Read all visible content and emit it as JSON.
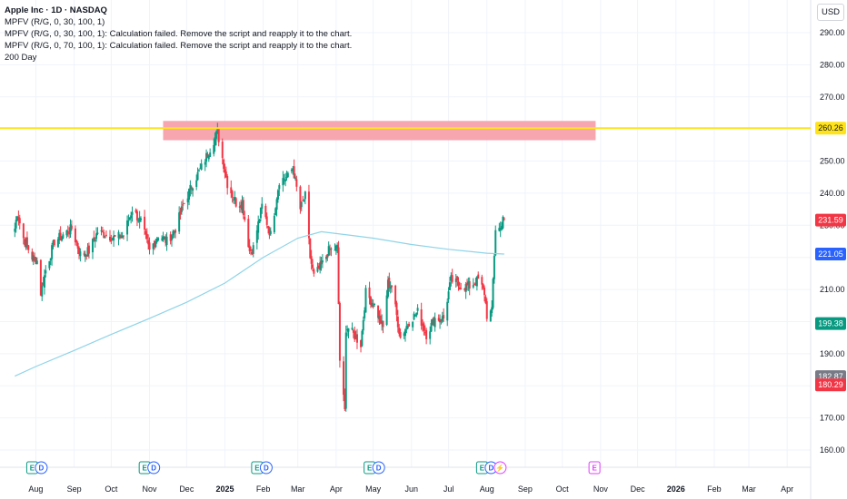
{
  "legend": {
    "title": "Apple Inc · 1D · NASDAQ",
    "lines": [
      "MPFV (R/G, 0, 30, 100, 1)",
      "MPFV (R/G, 0, 30, 100, 1): Calculation failed. Remove the script and reapply it to the chart.",
      "MPFV (R/G, 0, 70, 100, 1): Calculation failed. Remove the script and reapply it to the chart.",
      "200 Day"
    ]
  },
  "currency": "USD",
  "colors": {
    "up": "#089981",
    "down": "#f23645",
    "ma": "#8fd4e8",
    "resistance": "#ffe31a",
    "zone": "#f7a0aa",
    "grid": "#f0f3fa"
  },
  "chart_data": {
    "type": "candlestick",
    "ylim": [
      155,
      296
    ],
    "y_ticks": [
      160,
      170,
      180,
      190,
      200,
      210,
      220,
      230,
      240,
      250,
      260,
      270,
      280,
      290
    ],
    "x_labels": [
      {
        "label": "Aug",
        "date": "2024-08-01"
      },
      {
        "label": "Sep",
        "date": "2024-09-01"
      },
      {
        "label": "Oct",
        "date": "2024-10-01"
      },
      {
        "label": "Nov",
        "date": "2024-11-01"
      },
      {
        "label": "Dec",
        "date": "2024-12-01"
      },
      {
        "label": "2025",
        "date": "2025-01-01",
        "bold": true
      },
      {
        "label": "Feb",
        "date": "2025-02-01"
      },
      {
        "label": "Mar",
        "date": "2025-03-01"
      },
      {
        "label": "Apr",
        "date": "2025-04-01"
      },
      {
        "label": "May",
        "date": "2025-05-01"
      },
      {
        "label": "Jun",
        "date": "2025-06-01"
      },
      {
        "label": "Jul",
        "date": "2025-07-01"
      },
      {
        "label": "Aug",
        "date": "2025-08-01"
      },
      {
        "label": "Sep",
        "date": "2025-09-01"
      },
      {
        "label": "Oct",
        "date": "2025-10-01"
      },
      {
        "label": "Nov",
        "date": "2025-11-01"
      },
      {
        "label": "Dec",
        "date": "2025-12-01"
      },
      {
        "label": "2026",
        "date": "2026-01-01",
        "bold": true
      },
      {
        "label": "Feb",
        "date": "2026-02-01"
      },
      {
        "label": "Mar",
        "date": "2026-03-01"
      },
      {
        "label": "Apr",
        "date": "2026-04-01"
      }
    ],
    "price_anchors": [
      [
        "2024-07-15",
        229
      ],
      [
        "2024-07-17",
        234
      ],
      [
        "2024-07-22",
        226
      ],
      [
        "2024-07-29",
        220
      ],
      [
        "2024-08-02",
        219
      ],
      [
        "2024-08-05",
        209
      ],
      [
        "2024-08-09",
        216
      ],
      [
        "2024-08-16",
        225
      ],
      [
        "2024-08-23",
        227
      ],
      [
        "2024-08-30",
        229
      ],
      [
        "2024-09-06",
        221
      ],
      [
        "2024-09-13",
        222
      ],
      [
        "2024-09-20",
        228
      ],
      [
        "2024-09-27",
        227
      ],
      [
        "2024-10-04",
        226
      ],
      [
        "2024-10-11",
        227
      ],
      [
        "2024-10-18",
        235
      ],
      [
        "2024-10-25",
        231
      ],
      [
        "2024-11-01",
        222
      ],
      [
        "2024-11-08",
        227
      ],
      [
        "2024-11-15",
        225
      ],
      [
        "2024-11-22",
        229
      ],
      [
        "2024-11-29",
        237
      ],
      [
        "2024-12-06",
        243
      ],
      [
        "2024-12-13",
        248
      ],
      [
        "2024-12-20",
        254
      ],
      [
        "2024-12-26",
        259
      ],
      [
        "2025-01-03",
        243
      ],
      [
        "2025-01-10",
        237
      ],
      [
        "2025-01-15",
        237
      ],
      [
        "2025-01-21",
        222
      ],
      [
        "2025-01-24",
        223
      ],
      [
        "2025-01-31",
        236
      ],
      [
        "2025-02-07",
        227
      ],
      [
        "2025-02-14",
        244
      ],
      [
        "2025-02-21",
        245
      ],
      [
        "2025-02-25",
        248
      ],
      [
        "2025-03-03",
        235
      ],
      [
        "2025-03-07",
        239
      ],
      [
        "2025-03-11",
        220
      ],
      [
        "2025-03-14",
        214
      ],
      [
        "2025-03-21",
        218
      ],
      [
        "2025-03-26",
        222
      ],
      [
        "2025-04-02",
        223
      ],
      [
        "2025-04-04",
        188
      ],
      [
        "2025-04-08",
        172
      ],
      [
        "2025-04-09",
        198
      ],
      [
        "2025-04-11",
        198
      ],
      [
        "2025-04-21",
        193
      ],
      [
        "2025-04-25",
        209
      ],
      [
        "2025-05-02",
        205
      ],
      [
        "2025-05-09",
        198
      ],
      [
        "2025-05-13",
        212
      ],
      [
        "2025-05-16",
        211
      ],
      [
        "2025-05-23",
        195
      ],
      [
        "2025-05-30",
        200
      ],
      [
        "2025-06-06",
        203
      ],
      [
        "2025-06-13",
        196
      ],
      [
        "2025-06-20",
        201
      ],
      [
        "2025-06-27",
        201
      ],
      [
        "2025-07-03",
        213
      ],
      [
        "2025-07-11",
        211
      ],
      [
        "2025-07-18",
        211
      ],
      [
        "2025-07-25",
        213
      ],
      [
        "2025-07-30",
        209
      ],
      [
        "2025-08-01",
        202
      ],
      [
        "2025-08-05",
        203
      ],
      [
        "2025-08-06",
        213
      ],
      [
        "2025-08-08",
        229
      ],
      [
        "2025-08-12",
        229
      ],
      [
        "2025-08-14",
        233
      ],
      [
        "2025-08-15",
        232
      ]
    ],
    "ma200": [
      [
        "2024-07-15",
        183
      ],
      [
        "2024-08-01",
        186
      ],
      [
        "2024-09-01",
        191
      ],
      [
        "2024-10-01",
        196
      ],
      [
        "2024-11-01",
        201
      ],
      [
        "2024-12-01",
        206
      ],
      [
        "2025-01-01",
        212
      ],
      [
        "2025-02-01",
        220
      ],
      [
        "2025-03-01",
        226
      ],
      [
        "2025-03-20",
        228
      ],
      [
        "2025-04-10",
        227
      ],
      [
        "2025-05-01",
        226
      ],
      [
        "2025-06-01",
        224
      ],
      [
        "2025-07-01",
        222.5
      ],
      [
        "2025-08-01",
        221.3
      ],
      [
        "2025-08-15",
        221.05
      ]
    ],
    "resistance_line": 260.26,
    "supply_zone": {
      "from": "2024-11-12",
      "to": "2025-10-28",
      "low": 256.5,
      "high": 262.5
    },
    "price_tags": [
      {
        "value": 260.26,
        "label": "260.26",
        "bg": "#ffe31a",
        "fg": "#131722"
      },
      {
        "value": 231.59,
        "label": "231.59",
        "bg": "#f23645",
        "fg": "#ffffff"
      },
      {
        "value": 221.05,
        "label": "221.05",
        "bg": "#2962ff",
        "fg": "#ffffff"
      },
      {
        "value": 199.38,
        "label": "199.38",
        "bg": "#089981",
        "fg": "#ffffff"
      },
      {
        "value": 182.87,
        "label": "182.87",
        "bg": "#787b86",
        "fg": "#ffffff"
      },
      {
        "value": 180.29,
        "label": "180.29",
        "bg": "#f23645",
        "fg": "#ffffff"
      }
    ],
    "events": [
      {
        "date": "2024-08-01",
        "items": [
          {
            "t": "E",
            "c": "#089981"
          },
          {
            "t": "D",
            "c": "#2962ff"
          }
        ]
      },
      {
        "date": "2024-10-31",
        "items": [
          {
            "t": "E",
            "c": "#089981"
          },
          {
            "t": "D",
            "c": "#2962ff"
          }
        ]
      },
      {
        "date": "2025-01-30",
        "items": [
          {
            "t": "E",
            "c": "#089981"
          },
          {
            "t": "D",
            "c": "#2962ff"
          }
        ]
      },
      {
        "date": "2025-05-01",
        "items": [
          {
            "t": "E",
            "c": "#089981"
          },
          {
            "t": "D",
            "c": "#2962ff"
          }
        ]
      },
      {
        "date": "2025-07-31",
        "items": [
          {
            "t": "E",
            "c": "#089981"
          },
          {
            "t": "D",
            "c": "#2962ff"
          },
          {
            "t": "⚡",
            "c": "#e040fb"
          }
        ]
      },
      {
        "date": "2025-10-30",
        "items": [
          {
            "t": "E",
            "c": "#e040fb"
          }
        ]
      }
    ],
    "date_range": [
      "2024-07-03",
      "2026-04-20"
    ]
  }
}
